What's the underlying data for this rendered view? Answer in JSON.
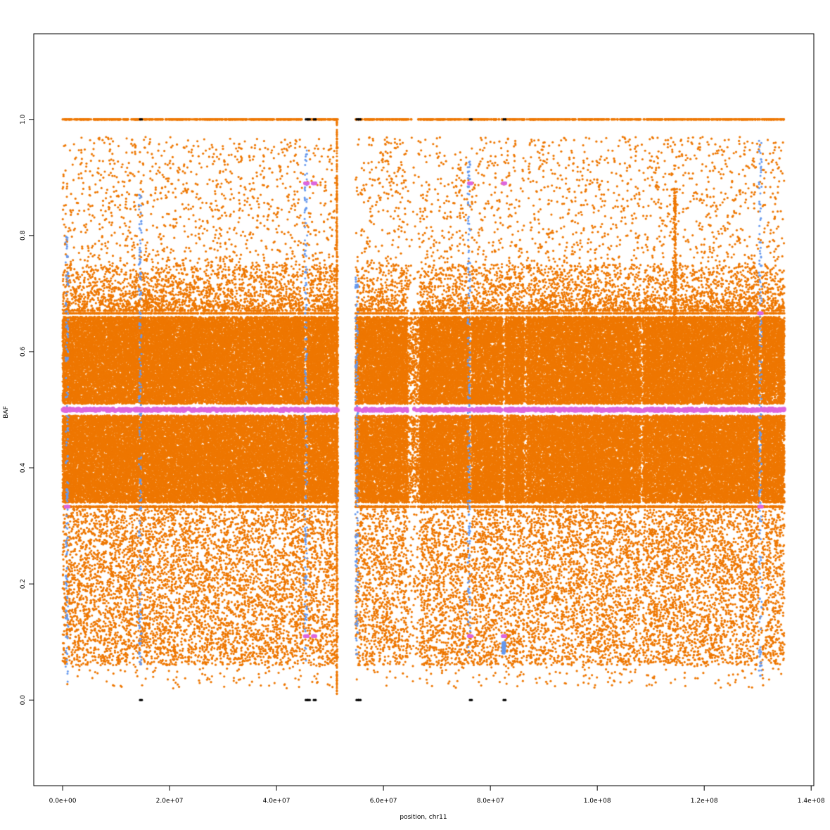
{
  "chart_data": {
    "type": "scatter",
    "title": "",
    "xlabel": "position, chr11",
    "ylabel": "BAF",
    "xlim": [
      -5400000,
      140500000
    ],
    "ylim": [
      -0.1475,
      1.1475
    ],
    "x_ticks": [
      0,
      20000000,
      40000000,
      60000000,
      80000000,
      100000000,
      120000000,
      140000000
    ],
    "x_tick_labels": [
      "0.0e+00",
      "2.0e+07",
      "4.0e+07",
      "6.0e+07",
      "8.0e+07",
      "1.0e+08",
      "1.2e+08",
      "1.4e+08"
    ],
    "y_ticks": [
      0.0,
      0.2,
      0.4,
      0.6,
      0.8,
      1.0
    ],
    "y_tick_labels": [
      "0.0",
      "0.2",
      "0.4",
      "0.6",
      "0.8",
      "1.0"
    ],
    "grid": false,
    "legend": "none",
    "colors": {
      "main": "#ee7700",
      "blue": "#6699ee",
      "magenta": "#dd66dd",
      "black": "#000000"
    },
    "chromosome_extent": [
      0,
      135000000
    ],
    "centromere_gap": [
      51500000,
      54800000
    ],
    "heterozygous_band_edges": [
      0.34,
      0.49,
      0.51,
      0.66
    ],
    "homozygous_values": [
      0.0,
      1.0
    ],
    "series": [
      {
        "color_key": "main",
        "description_points": [
          {
            "x": 0,
            "y": 1.0
          },
          {
            "x": 135000000,
            "y": 1.0
          },
          {
            "x": 0,
            "y": 0.66
          },
          {
            "x": 135000000,
            "y": 0.66
          },
          {
            "x": 0,
            "y": 0.5
          },
          {
            "x": 135000000,
            "y": 0.5
          },
          {
            "x": 0,
            "y": 0.33
          },
          {
            "x": 135000000,
            "y": 0.33
          },
          {
            "x": 0,
            "y": 0.06
          },
          {
            "x": 135000000,
            "y": 0.06
          }
        ]
      },
      {
        "color_key": "blue",
        "description_points": [
          {
            "x": 800000,
            "y": 0.03
          },
          {
            "x": 800000,
            "y": 0.8
          },
          {
            "x": 14500000,
            "y": 0.06
          },
          {
            "x": 14500000,
            "y": 0.88
          },
          {
            "x": 45500000,
            "y": 0.06
          },
          {
            "x": 45500000,
            "y": 0.95
          },
          {
            "x": 55000000,
            "y": 0.07
          },
          {
            "x": 55000000,
            "y": 0.73
          },
          {
            "x": 76000000,
            "y": 0.08
          },
          {
            "x": 76000000,
            "y": 0.94
          },
          {
            "x": 82500000,
            "y": 0.08
          },
          {
            "x": 82500000,
            "y": 0.1
          },
          {
            "x": 130500000,
            "y": 0.04
          },
          {
            "x": 130500000,
            "y": 0.97
          }
        ]
      },
      {
        "color_key": "magenta",
        "description_points": [
          {
            "x": 0,
            "y": 0.5
          },
          {
            "x": 135000000,
            "y": 0.5
          },
          {
            "x": 45600000,
            "y": 0.89
          },
          {
            "x": 47000000,
            "y": 0.89
          },
          {
            "x": 76200000,
            "y": 0.89
          },
          {
            "x": 82500000,
            "y": 0.89
          },
          {
            "x": 45600000,
            "y": 0.11
          },
          {
            "x": 47000000,
            "y": 0.11
          },
          {
            "x": 76200000,
            "y": 0.11
          },
          {
            "x": 82500000,
            "y": 0.11
          },
          {
            "x": 800000,
            "y": 0.333
          },
          {
            "x": 130500000,
            "y": 0.333
          },
          {
            "x": 130500000,
            "y": 0.666
          }
        ]
      },
      {
        "color_key": "black",
        "points": [
          {
            "x": 14500000,
            "y": 0.0
          },
          {
            "x": 45500000,
            "y": 0.0
          },
          {
            "x": 45900000,
            "y": 0.0
          },
          {
            "x": 47000000,
            "y": 0.0
          },
          {
            "x": 55000000,
            "y": 0.0
          },
          {
            "x": 55400000,
            "y": 0.0
          },
          {
            "x": 76200000,
            "y": 0.0
          },
          {
            "x": 82500000,
            "y": 0.0
          },
          {
            "x": 14500000,
            "y": 1.0
          },
          {
            "x": 45500000,
            "y": 1.0
          },
          {
            "x": 45900000,
            "y": 1.0
          },
          {
            "x": 47000000,
            "y": 1.0
          },
          {
            "x": 55000000,
            "y": 1.0
          },
          {
            "x": 55400000,
            "y": 1.0
          },
          {
            "x": 76200000,
            "y": 1.0
          },
          {
            "x": 82500000,
            "y": 1.0
          }
        ]
      }
    ]
  }
}
